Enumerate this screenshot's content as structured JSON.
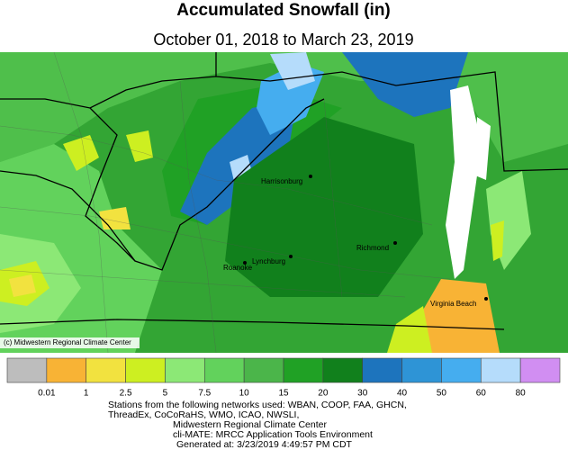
{
  "header": {
    "title": "Accumulated Snowfall (in)",
    "subtitle": "October 01, 2018 to March 23, 2019"
  },
  "map": {
    "copyright": "(c) Midwestern Regional Climate Center",
    "cities": [
      {
        "label": "Harrisonburg"
      },
      {
        "label": "Lynchburg"
      },
      {
        "label": "Roanoke"
      },
      {
        "label": "Richmond"
      },
      {
        "label": "Virginia Beach"
      }
    ]
  },
  "legend": {
    "colors": [
      "#bdbdbd",
      "#f8b335",
      "#f2e23f",
      "#cdef21",
      "#8ce876",
      "#62d25c",
      "#4bb54a",
      "#20a125",
      "#11801c",
      "#1d74bd",
      "#2e94d6",
      "#45adef",
      "#b5dcfb",
      "#d18ef2"
    ],
    "labels": [
      0.01,
      1,
      2.5,
      5,
      7.5,
      10,
      15,
      20,
      30,
      40,
      50,
      60,
      80
    ]
  },
  "footer": {
    "lines": [
      "Stations from the following networks used: WBAN, COOP, FAA, GHCN,",
      "ThreadEx, CoCoRaHS, WMO, ICAO, NWSLI,",
      "Midwestern Regional Climate Center",
      "cli-MATE: MRCC Application Tools Environment",
      "Generated at: 3/23/2019 4:49:57 PM CDT"
    ]
  }
}
